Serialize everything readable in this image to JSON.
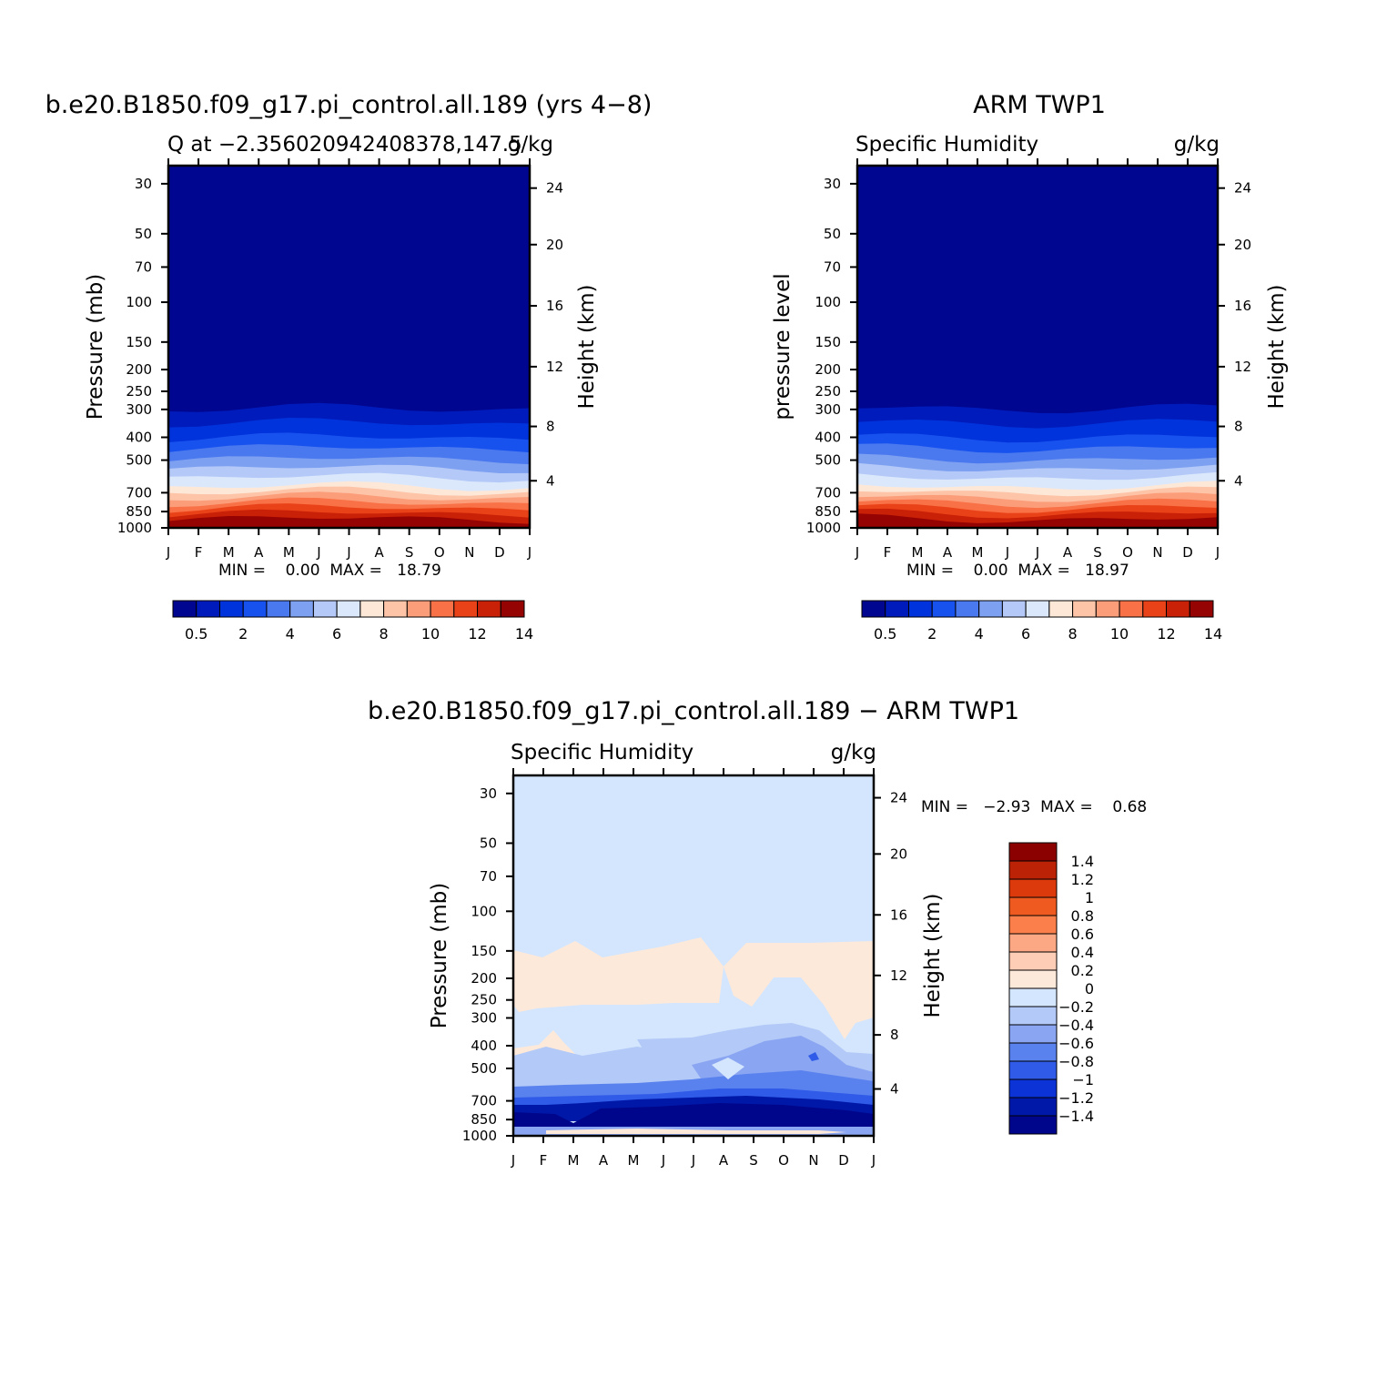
{
  "chart_data": [
    {
      "type": "heatmap",
      "title": "b.e20.B1850.f09_g17.pi_control.all.189 (yrs 4−8)",
      "subtitle_left": "Q at −2.356020942408378,147.5",
      "subtitle_right": "g/kg",
      "ylabel": "Pressure (mb)",
      "ylabel_right": "Height (km)",
      "x_ticks": [
        "J",
        "F",
        "M",
        "A",
        "M",
        "J",
        "J",
        "A",
        "S",
        "O",
        "N",
        "D",
        "J"
      ],
      "y_ticks": [
        "30",
        "50",
        "70",
        "100",
        "150",
        "200",
        "250",
        "300",
        "400",
        "500",
        "700",
        "850",
        "1000"
      ],
      "y_right_ticks": [
        "24",
        "20",
        "16",
        "12",
        "8",
        "4"
      ],
      "stats": "MIN =    0.00  MAX =   18.79",
      "colorbar_labels": [
        "0.5",
        "2",
        "4",
        "6",
        "8",
        "10",
        "12",
        "14"
      ]
    },
    {
      "type": "heatmap",
      "title": "ARM TWP1",
      "subtitle_left": "Specific Humidity",
      "subtitle_right": "g/kg",
      "ylabel": "pressure level",
      "ylabel_right": "Height (km)",
      "x_ticks": [
        "J",
        "F",
        "M",
        "A",
        "M",
        "J",
        "J",
        "A",
        "S",
        "O",
        "N",
        "D",
        "J"
      ],
      "y_ticks": [
        "30",
        "50",
        "70",
        "100",
        "150",
        "200",
        "250",
        "300",
        "400",
        "500",
        "700",
        "850",
        "1000"
      ],
      "y_right_ticks": [
        "24",
        "20",
        "16",
        "12",
        "8",
        "4"
      ],
      "stats": "MIN =    0.00  MAX =   18.97",
      "colorbar_labels": [
        "0.5",
        "2",
        "4",
        "6",
        "8",
        "10",
        "12",
        "14"
      ]
    },
    {
      "type": "heatmap",
      "title": "b.e20.B1850.f09_g17.pi_control.all.189 − ARM TWP1",
      "subtitle_left": "Specific Humidity",
      "subtitle_right": "g/kg",
      "ylabel": "Pressure (mb)",
      "ylabel_right": "Height (km)",
      "x_ticks": [
        "J",
        "F",
        "M",
        "A",
        "M",
        "J",
        "J",
        "A",
        "S",
        "O",
        "N",
        "D",
        "J"
      ],
      "y_ticks": [
        "30",
        "50",
        "70",
        "100",
        "150",
        "200",
        "250",
        "300",
        "400",
        "500",
        "700",
        "850",
        "1000"
      ],
      "y_right_ticks": [
        "24",
        "20",
        "16",
        "12",
        "8",
        "4"
      ],
      "stats": "MIN =   −2.93  MAX =    0.68",
      "colorbar_labels": [
        "1.4",
        "1.2",
        "1",
        "0.8",
        "0.6",
        "0.4",
        "0.2",
        "0",
        "−0.2",
        "−0.4",
        "−0.6",
        "−0.8",
        "−1",
        "−1.2",
        "−1.4"
      ]
    }
  ],
  "colors": {
    "abs_scale": [
      "#00068f",
      "#001bbb",
      "#0033db",
      "#1852ee",
      "#4a78ee",
      "#7ea0f1",
      "#b4c9f7",
      "#dbe8fc",
      "#fde8d8",
      "#fdc4a8",
      "#fc9d7a",
      "#f97146",
      "#ea4218",
      "#c92008",
      "#960303"
    ],
    "diff_scale": [
      "#8b0000",
      "#bb2206",
      "#dc3a0c",
      "#ee5a20",
      "#fb7f4a",
      "#fca885",
      "#fdcdb6",
      "#fde9da",
      "#d4e6fd",
      "#b3c9f7",
      "#8aa6f2",
      "#5a82ee",
      "#2f5be8",
      "#0c33d6",
      "#0018a8",
      "#00068b"
    ]
  }
}
